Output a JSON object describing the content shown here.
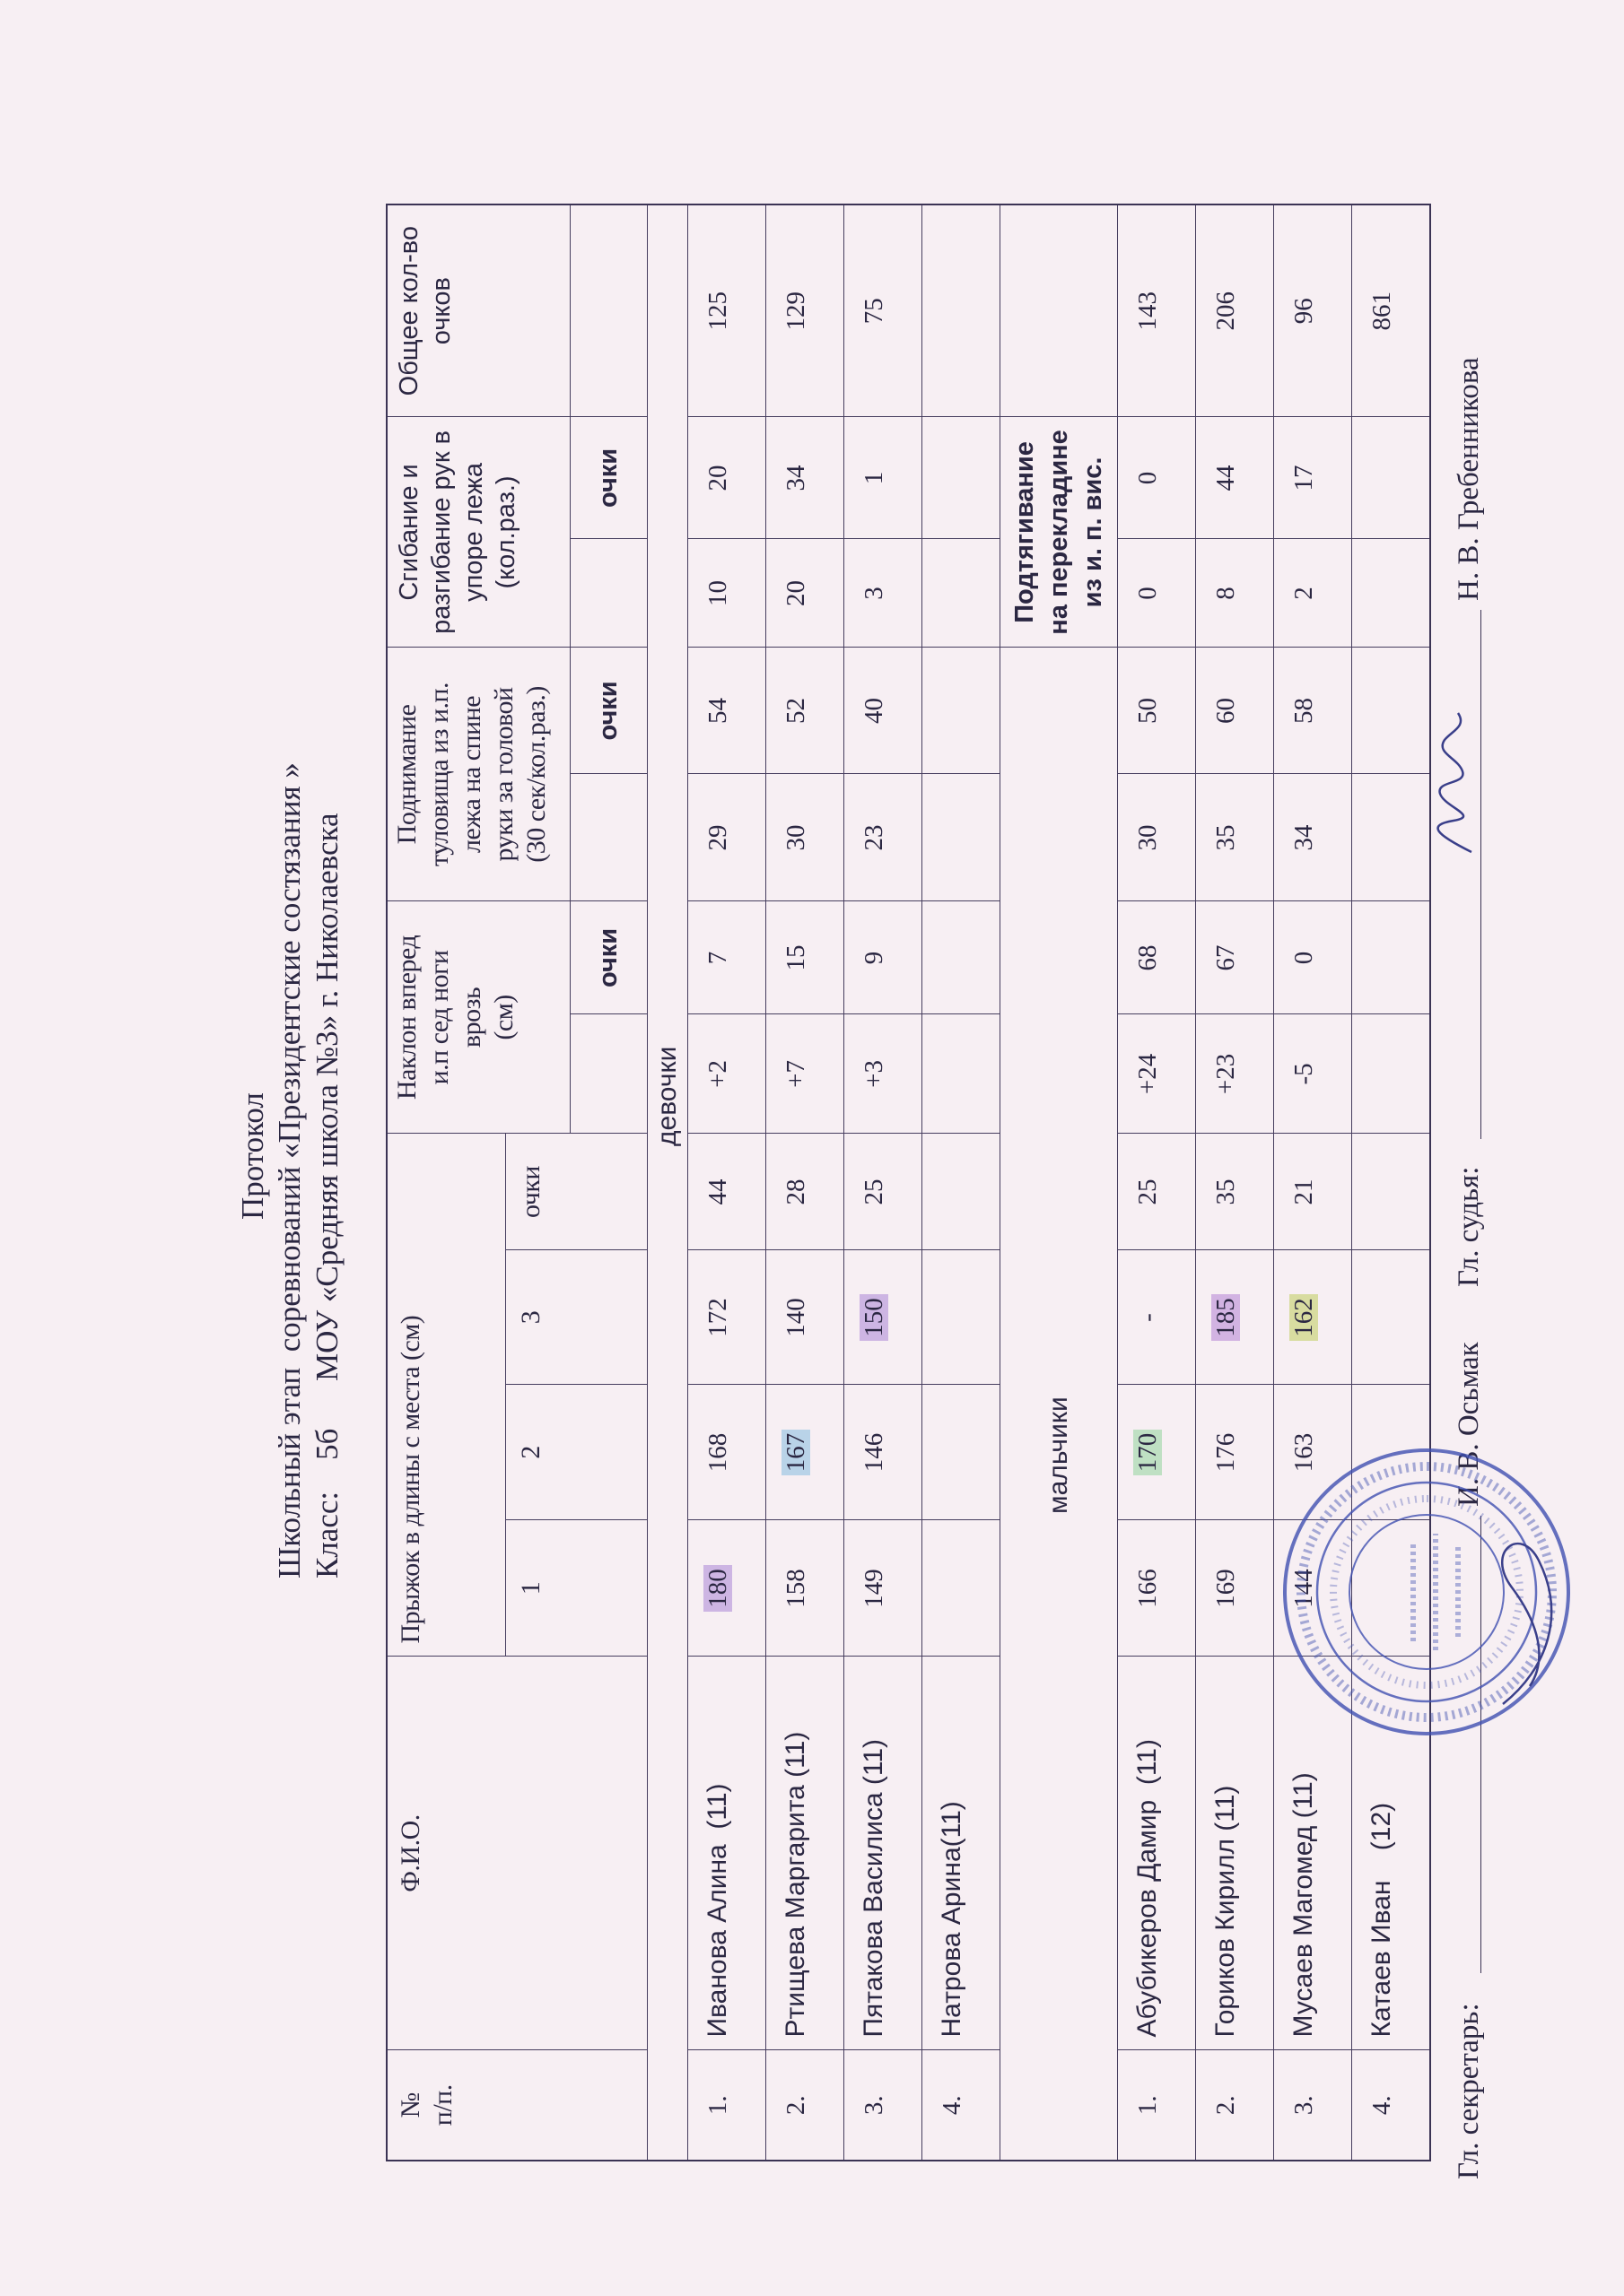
{
  "header": {
    "title": "Протокол",
    "line2": "Школьный этап  соревнований «Президентские состязания »",
    "line3": "Класс:    5б      МОУ «Средняя школа №3» г. Николаевска"
  },
  "table": {
    "columns": {
      "num": "№\nп/п.",
      "fio": "Ф.И.О.",
      "jump": "Прыжок в длины с места (см)",
      "jump_1": "1",
      "jump_2": "2",
      "jump_3": "3",
      "jump_pts": "очки",
      "bend": "Наклон вперед\nи.п сед ноги\nврозь\n(см)",
      "bend_pts": "очки",
      "situp": "Поднимание\nтуловища из и.п.\nлежа на спине\nруки за головой\n(30 сек/кол.раз.)",
      "situp_pts": "очки",
      "pushup": "Сгибание и\nразгибание рук в\nупоре лежа\n(кол.раз.)",
      "pushup_pts": "очки",
      "total": "Общее кол-во\nочков"
    },
    "girls_label": "девочки",
    "boys_label": "мальчики",
    "boys_pullup_label": "Подтягивание\nна перекладине\nиз и. п. вис.",
    "girls": [
      {
        "n": "1.",
        "name": "Иванова Алина  (11)",
        "jump_1": "180",
        "jump_2": "168",
        "jump_3": "172",
        "jump_pts": "44",
        "bend": "+2",
        "bend_pts": "7",
        "situp": "29",
        "situp_pts": "54",
        "pushup": "10",
        "pushup_pts": "20",
        "total": "125",
        "highlight": {
          "jump_1": "#cdb5e3"
        }
      },
      {
        "n": "2.",
        "name": "Ртищева Маргарита (11)",
        "jump_1": "158",
        "jump_2": "167",
        "jump_3": "140",
        "jump_pts": "28",
        "bend": "+7",
        "bend_pts": "15",
        "situp": "30",
        "situp_pts": "52",
        "pushup": "20",
        "pushup_pts": "34",
        "total": "129",
        "highlight": {
          "jump_2": "#b9d3e8"
        }
      },
      {
        "n": "3.",
        "name": "Пятакова Василиса (11)",
        "jump_1": "149",
        "jump_2": "146",
        "jump_3": "150",
        "jump_pts": "25",
        "bend": "+3",
        "bend_pts": "9",
        "situp": "23",
        "situp_pts": "40",
        "pushup": "3",
        "pushup_pts": "1",
        "total": "75",
        "highlight": {
          "jump_3": "#cdb5e3"
        }
      },
      {
        "n": "4.",
        "name": "Натрова Арина(11)",
        "jump_1": "",
        "jump_2": "",
        "jump_3": "",
        "jump_pts": "",
        "bend": "",
        "bend_pts": "",
        "situp": "",
        "situp_pts": "",
        "pushup": "",
        "pushup_pts": "",
        "total": ""
      }
    ],
    "boys": [
      {
        "n": "1.",
        "name": "Абубикеров Дамир  (11)",
        "jump_1": "166",
        "jump_2": "170",
        "jump_3": "-",
        "jump_pts": "25",
        "bend": "+24",
        "bend_pts": "68",
        "situp": "30",
        "situp_pts": "50",
        "pushup": "0",
        "pushup_pts": "0",
        "total": "143",
        "highlight": {
          "jump_2": "#bfe0c3"
        }
      },
      {
        "n": "2.",
        "name": "Гориков Кирилл (11)",
        "jump_1": "169",
        "jump_2": "176",
        "jump_3": "185",
        "jump_pts": "35",
        "bend": "+23",
        "bend_pts": "67",
        "situp": "35",
        "situp_pts": "60",
        "pushup": "8",
        "pushup_pts": "44",
        "total": "206",
        "highlight": {
          "jump_3": "#d2b3e2"
        }
      },
      {
        "n": "3.",
        "name": "Мусаев Магомед (11)",
        "jump_1": "144",
        "jump_2": "163",
        "jump_3": "162",
        "jump_pts": "21",
        "bend": "-5",
        "bend_pts": "0",
        "situp": "34",
        "situp_pts": "58",
        "pushup": "2",
        "pushup_pts": "17",
        "total": "96",
        "highlight": {
          "jump_3": "#d8dca0"
        }
      },
      {
        "n": "4.",
        "name": "Катаев Иван    (12)",
        "jump_1": "",
        "jump_2": "",
        "jump_3": "",
        "jump_pts": "",
        "bend": "",
        "bend_pts": "",
        "situp": "",
        "situp_pts": "",
        "pushup": "",
        "pushup_pts": "",
        "total": "861"
      }
    ]
  },
  "footer": {
    "secretary_label": "Гл. секретарь:",
    "secretary_name": "И. В. Осьмак",
    "judge_label": "Гл. судья:",
    "judge_name": "Н. В. Гребенникова"
  },
  "stamp": {
    "outer_text": "МУНИЦИПАЛЬНОЕ БЮДЖЕТНОЕ ОБЩЕОБРАЗОВАТЕЛЬНОЕ УЧРЕЖДЕНИЕ НИКОЛАЕВСКОГО МУНИЦИПАЛЬНОГО РАЙОНА ВОЛГОГРАДСКОЙ ОБЛАСТИ",
    "inner_text": "МОУ «Средняя школа № 3» г. Николаевска",
    "color": "#3f4fb0"
  },
  "colors": {
    "ink": "#2b2742",
    "paper": "#f7eff3",
    "stamp": "#3f4fb0"
  }
}
